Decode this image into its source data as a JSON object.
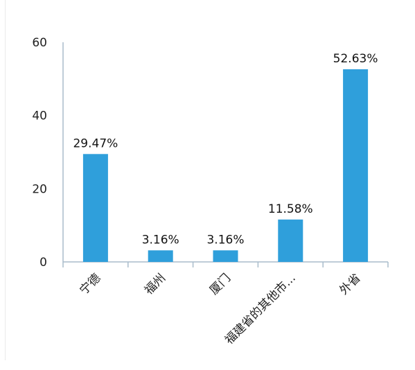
{
  "chart_data": {
    "type": "bar",
    "title": "",
    "xlabel": "",
    "ylabel": "",
    "categories": [
      "宁德",
      "福州",
      "厦门",
      "福建省的其他市...",
      "外省"
    ],
    "values": [
      29.47,
      3.16,
      3.16,
      11.58,
      52.63
    ],
    "data_labels": [
      "29.47%",
      "3.16%",
      "3.16%",
      "11.58%",
      "52.63%"
    ],
    "ylim": [
      0,
      60
    ],
    "yticks": [
      0,
      20,
      40,
      60
    ],
    "ytick_labels": [
      "0",
      "20",
      "40",
      "60"
    ],
    "grid": false,
    "colors": {
      "bar": "#2f9fdb",
      "axis": "#a9bccb"
    }
  }
}
